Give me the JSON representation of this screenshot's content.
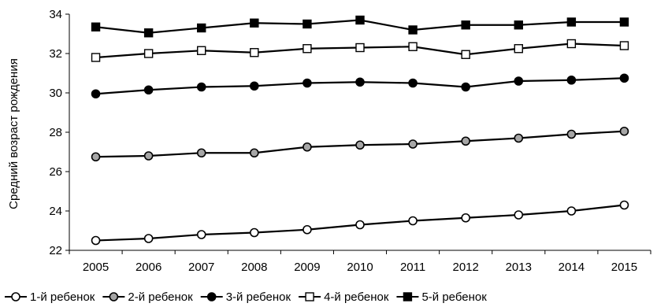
{
  "chart_data": {
    "type": "line",
    "title": "",
    "xlabel": "",
    "ylabel": "Средний возраст рождения",
    "x": [
      "2005",
      "2006",
      "2007",
      "2008",
      "2009",
      "2010",
      "2011",
      "2012",
      "2013",
      "2014",
      "2015"
    ],
    "ylim": [
      22,
      34
    ],
    "yticks": [
      "22",
      "24",
      "26",
      "28",
      "30",
      "32",
      "34"
    ],
    "grid": false,
    "legend_position": "bottom",
    "series": [
      {
        "name": "1-й ребенок",
        "marker": "circle-open",
        "color": "#000000",
        "fill": "#ffffff",
        "values": [
          22.5,
          22.6,
          22.8,
          22.9,
          23.05,
          23.3,
          23.5,
          23.65,
          23.8,
          24.0,
          24.3
        ]
      },
      {
        "name": "2-й ребенок",
        "marker": "circle-gray",
        "color": "#000000",
        "fill": "#a6a6a6",
        "values": [
          26.75,
          26.8,
          26.95,
          26.95,
          27.25,
          27.35,
          27.4,
          27.55,
          27.7,
          27.9,
          28.05
        ]
      },
      {
        "name": "3-й ребенок",
        "marker": "circle-filled",
        "color": "#000000",
        "fill": "#000000",
        "values": [
          29.95,
          30.15,
          30.3,
          30.35,
          30.5,
          30.55,
          30.5,
          30.3,
          30.6,
          30.65,
          30.75
        ]
      },
      {
        "name": "4-й ребенок",
        "marker": "square-open",
        "color": "#000000",
        "fill": "#ffffff",
        "values": [
          31.8,
          32.0,
          32.15,
          32.05,
          32.25,
          32.3,
          32.35,
          31.95,
          32.25,
          32.5,
          32.4
        ]
      },
      {
        "name": "5-й ребенок",
        "marker": "square-filled",
        "color": "#000000",
        "fill": "#000000",
        "values": [
          33.35,
          33.05,
          33.3,
          33.55,
          33.5,
          33.7,
          33.2,
          33.45,
          33.45,
          33.6,
          33.6
        ]
      }
    ]
  }
}
